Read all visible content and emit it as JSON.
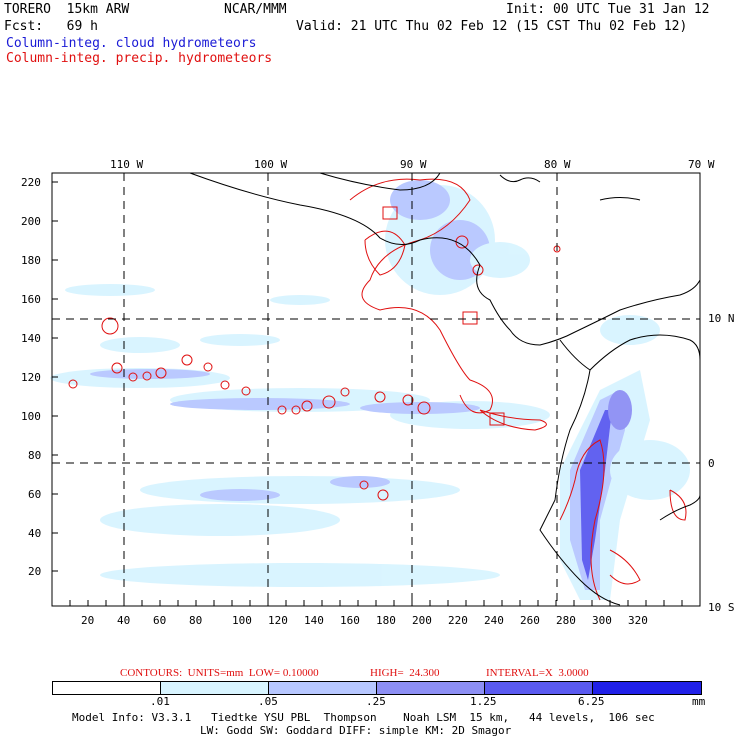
{
  "header": {
    "model": "TORERO  15km ARW",
    "org": "NCAR/MMM",
    "init": "Init: 00 UTC Tue 31 Jan 12",
    "fcst": "Fcst:   69 h",
    "valid": "Valid: 21 UTC Thu 02 Feb 12 (15 CST Thu 02 Feb 12)",
    "legend1": "Column-integ. cloud hydrometeors",
    "legend2": "Column-integ. precip. hydrometeors"
  },
  "axes": {
    "top_labels": [
      "110 W",
      "100 W",
      "90 W",
      "80 W",
      "70 W"
    ],
    "right_labels": [
      "10 N",
      "0",
      "10 S"
    ],
    "x_ticks": [
      "20",
      "40",
      "60",
      "80",
      "100",
      "120",
      "140",
      "160",
      "180",
      "200",
      "220",
      "240",
      "260",
      "280",
      "300",
      "320"
    ],
    "y_ticks": [
      "20",
      "40",
      "60",
      "80",
      "100",
      "120",
      "140",
      "160",
      "180",
      "200",
      "220"
    ]
  },
  "contours_info": {
    "label": "CONTOURS:  UNITS=mm  LOW= 0.10000",
    "high": "HIGH=  24.300",
    "interval": "INTERVAL=X  3.0000"
  },
  "colorbar": {
    "labels": [
      ".01",
      ".05",
      ".25",
      "1.25",
      "6.25"
    ],
    "units": "mm",
    "colors": [
      "#ffffff",
      "#d8f4ff",
      "#b7c7ff",
      "#8d8ff4",
      "#5a5af0",
      "#2020e8"
    ]
  },
  "footer": {
    "line1": "Model Info: V3.3.1   Tiedtke YSU PBL  Thompson    Noah LSM  15 km,   44 levels,  106 sec",
    "line2": "LW: Godd SW: Goddard DIFF: simple KM: 2D Smagor"
  }
}
